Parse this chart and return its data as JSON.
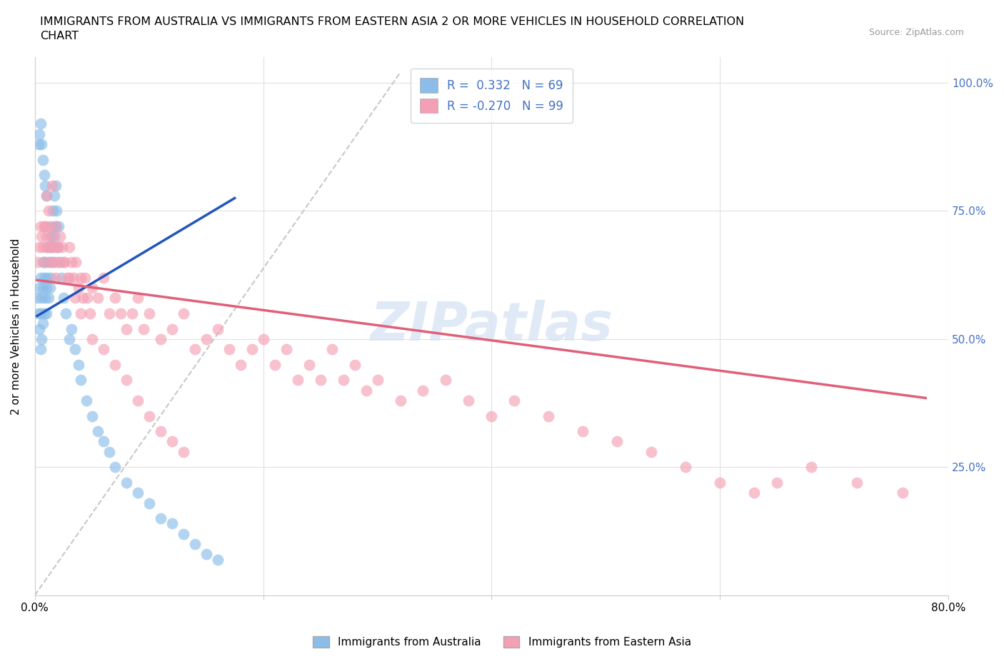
{
  "title_line1": "IMMIGRANTS FROM AUSTRALIA VS IMMIGRANTS FROM EASTERN ASIA 2 OR MORE VEHICLES IN HOUSEHOLD CORRELATION",
  "title_line2": "CHART",
  "source": "Source: ZipAtlas.com",
  "ylabel": "2 or more Vehicles in Household",
  "xmin": 0.0,
  "xmax": 0.8,
  "ymin": 0.0,
  "ymax": 1.05,
  "x_ticks": [
    0.0,
    0.2,
    0.4,
    0.6,
    0.8
  ],
  "x_tick_labels": [
    "0.0%",
    "",
    "",
    "",
    "80.0%"
  ],
  "y_ticks": [
    0.0,
    0.25,
    0.5,
    0.75,
    1.0
  ],
  "y_tick_labels": [
    "",
    "25.0%",
    "50.0%",
    "75.0%",
    "100.0%"
  ],
  "series1_color": "#8bbde8",
  "series2_color": "#f4a0b4",
  "trendline1_color": "#2255bb",
  "trendline2_color": "#e0607a",
  "diagonal_color": "#c8c8c8",
  "watermark": "ZIPatlas",
  "legend_label1": "R =  0.332   N = 69",
  "legend_label2": "R = -0.270   N = 99",
  "legend_color1": "#8bbde8",
  "legend_color2": "#f4a0b4",
  "bottom_legend1": "Immigrants from Australia",
  "bottom_legend2": "Immigrants from Eastern Asia",
  "australia_x": [
    0.002,
    0.003,
    0.004,
    0.004,
    0.005,
    0.005,
    0.005,
    0.006,
    0.006,
    0.007,
    0.007,
    0.007,
    0.008,
    0.008,
    0.009,
    0.009,
    0.01,
    0.01,
    0.011,
    0.011,
    0.012,
    0.012,
    0.013,
    0.013,
    0.014,
    0.014,
    0.015,
    0.015,
    0.016,
    0.016,
    0.017,
    0.017,
    0.018,
    0.018,
    0.019,
    0.02,
    0.021,
    0.022,
    0.023,
    0.025,
    0.027,
    0.03,
    0.032,
    0.035,
    0.038,
    0.04,
    0.045,
    0.05,
    0.055,
    0.06,
    0.065,
    0.07,
    0.08,
    0.09,
    0.1,
    0.11,
    0.12,
    0.13,
    0.14,
    0.15,
    0.16,
    0.003,
    0.004,
    0.005,
    0.006,
    0.007,
    0.008,
    0.009,
    0.01
  ],
  "australia_y": [
    0.58,
    0.55,
    0.52,
    0.6,
    0.48,
    0.55,
    0.62,
    0.5,
    0.58,
    0.53,
    0.6,
    0.65,
    0.55,
    0.62,
    0.58,
    0.65,
    0.6,
    0.55,
    0.62,
    0.68,
    0.58,
    0.65,
    0.6,
    0.68,
    0.62,
    0.7,
    0.65,
    0.72,
    0.68,
    0.75,
    0.7,
    0.78,
    0.72,
    0.8,
    0.75,
    0.68,
    0.72,
    0.65,
    0.62,
    0.58,
    0.55,
    0.5,
    0.52,
    0.48,
    0.45,
    0.42,
    0.38,
    0.35,
    0.32,
    0.3,
    0.28,
    0.25,
    0.22,
    0.2,
    0.18,
    0.15,
    0.14,
    0.12,
    0.1,
    0.08,
    0.07,
    0.88,
    0.9,
    0.92,
    0.88,
    0.85,
    0.82,
    0.8,
    0.78
  ],
  "eastern_asia_x": [
    0.002,
    0.004,
    0.005,
    0.006,
    0.007,
    0.008,
    0.009,
    0.01,
    0.011,
    0.012,
    0.013,
    0.014,
    0.015,
    0.016,
    0.017,
    0.018,
    0.019,
    0.02,
    0.022,
    0.024,
    0.026,
    0.028,
    0.03,
    0.032,
    0.034,
    0.036,
    0.038,
    0.04,
    0.042,
    0.044,
    0.046,
    0.048,
    0.05,
    0.055,
    0.06,
    0.065,
    0.07,
    0.075,
    0.08,
    0.085,
    0.09,
    0.095,
    0.1,
    0.11,
    0.12,
    0.13,
    0.14,
    0.15,
    0.16,
    0.17,
    0.18,
    0.19,
    0.2,
    0.21,
    0.22,
    0.23,
    0.24,
    0.25,
    0.26,
    0.27,
    0.28,
    0.29,
    0.3,
    0.32,
    0.34,
    0.36,
    0.38,
    0.4,
    0.42,
    0.45,
    0.48,
    0.51,
    0.54,
    0.57,
    0.6,
    0.63,
    0.65,
    0.68,
    0.72,
    0.76,
    0.008,
    0.01,
    0.012,
    0.015,
    0.018,
    0.02,
    0.025,
    0.03,
    0.035,
    0.04,
    0.05,
    0.06,
    0.07,
    0.08,
    0.09,
    0.1,
    0.11,
    0.12,
    0.13
  ],
  "eastern_asia_y": [
    0.65,
    0.68,
    0.72,
    0.7,
    0.68,
    0.65,
    0.72,
    0.7,
    0.68,
    0.72,
    0.68,
    0.65,
    0.7,
    0.68,
    0.65,
    0.62,
    0.68,
    0.65,
    0.7,
    0.68,
    0.65,
    0.62,
    0.68,
    0.65,
    0.62,
    0.65,
    0.6,
    0.62,
    0.58,
    0.62,
    0.58,
    0.55,
    0.6,
    0.58,
    0.62,
    0.55,
    0.58,
    0.55,
    0.52,
    0.55,
    0.58,
    0.52,
    0.55,
    0.5,
    0.52,
    0.55,
    0.48,
    0.5,
    0.52,
    0.48,
    0.45,
    0.48,
    0.5,
    0.45,
    0.48,
    0.42,
    0.45,
    0.42,
    0.48,
    0.42,
    0.45,
    0.4,
    0.42,
    0.38,
    0.4,
    0.42,
    0.38,
    0.35,
    0.38,
    0.35,
    0.32,
    0.3,
    0.28,
    0.25,
    0.22,
    0.2,
    0.22,
    0.25,
    0.22,
    0.2,
    0.72,
    0.78,
    0.75,
    0.8,
    0.72,
    0.68,
    0.65,
    0.62,
    0.58,
    0.55,
    0.5,
    0.48,
    0.45,
    0.42,
    0.38,
    0.35,
    0.32,
    0.3,
    0.28
  ],
  "trendline1_x_start": 0.002,
  "trendline1_x_end": 0.175,
  "trendline1_y_start": 0.545,
  "trendline1_y_end": 0.775,
  "trendline2_x_start": 0.002,
  "trendline2_x_end": 0.78,
  "trendline2_y_start": 0.615,
  "trendline2_y_end": 0.385
}
